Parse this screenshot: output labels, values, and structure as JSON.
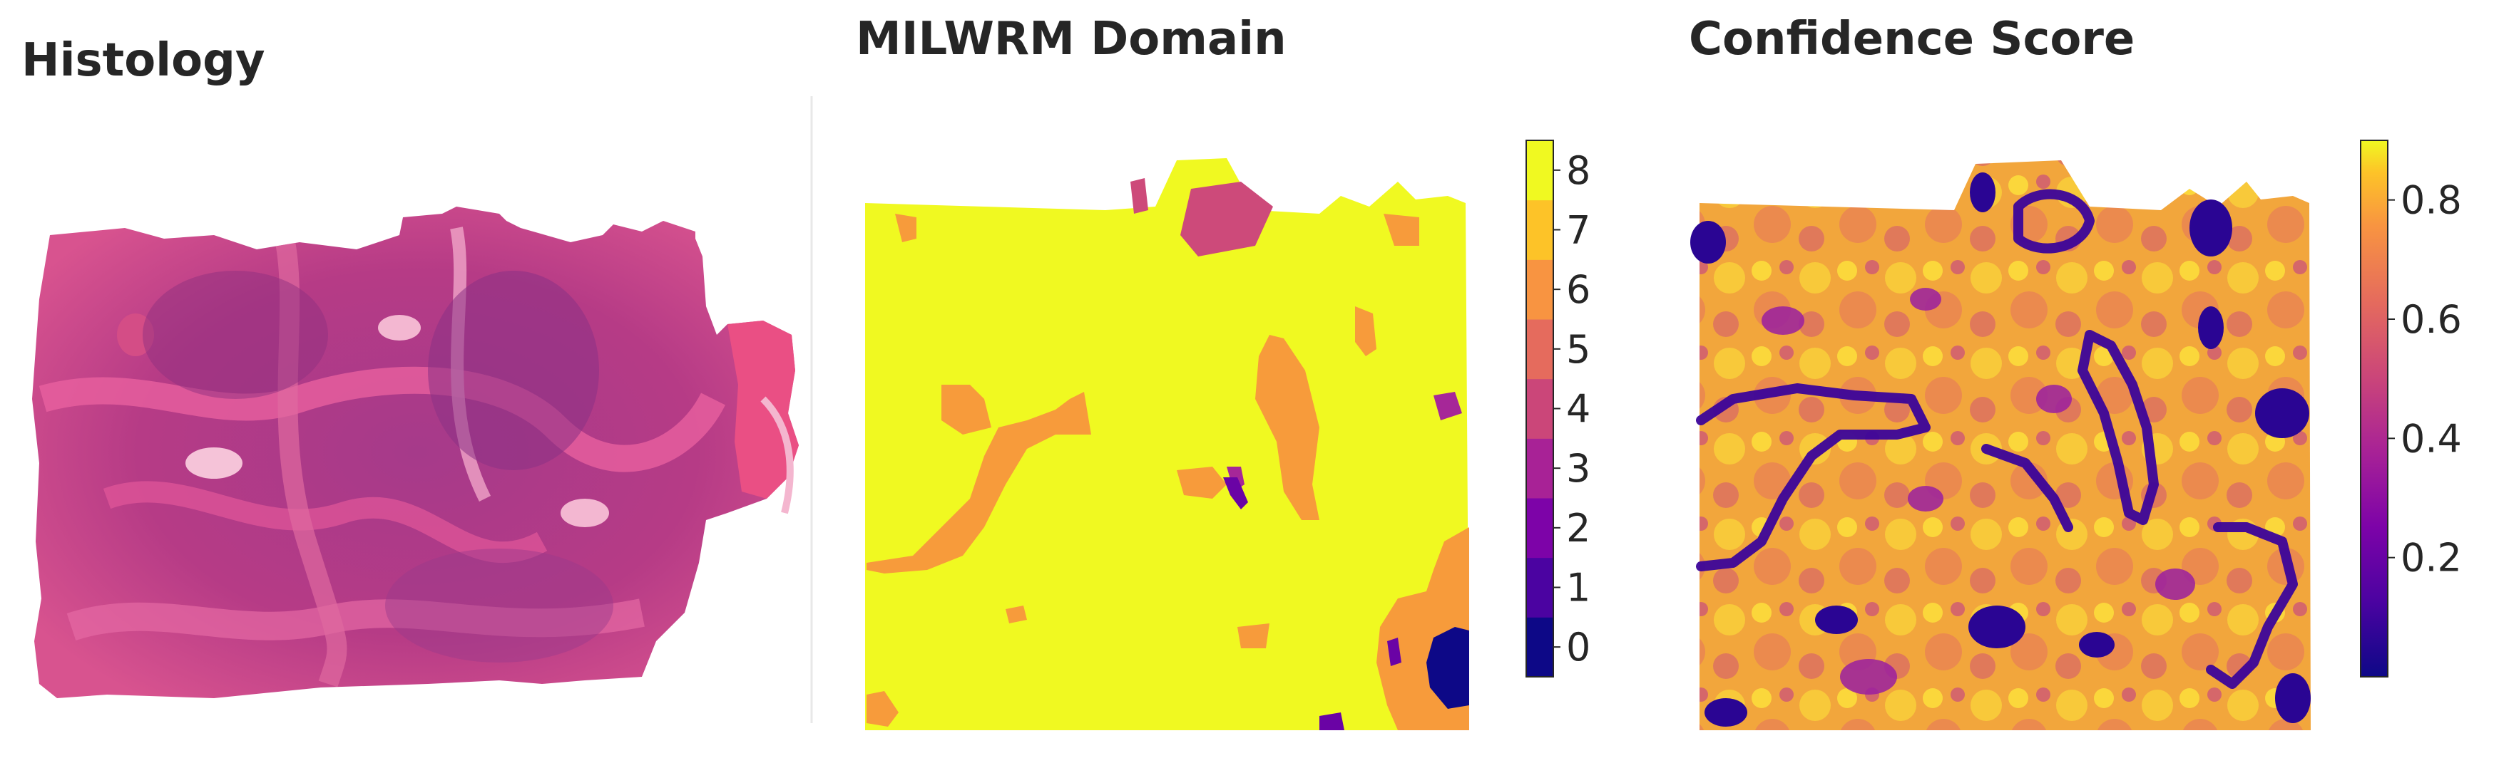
{
  "panels": {
    "histology": {
      "title": "Histology"
    },
    "domain": {
      "title": "MILWRM Domain"
    },
    "confidence": {
      "title": "Confidence Score"
    }
  },
  "chart_data": [
    {
      "type": "image",
      "title": "Histology",
      "description_colors": [
        "#c0397e",
        "#8e2f82",
        "#e36aa2",
        "#f4a9c8"
      ]
    },
    {
      "type": "heatmap",
      "title": "MILWRM Domain",
      "colorbar": {
        "kind": "discrete",
        "ticks": [
          0,
          1,
          2,
          3,
          4,
          5,
          6,
          7,
          8
        ],
        "colors": [
          "#0d0887",
          "#4b03a1",
          "#7d03a8",
          "#a82296",
          "#cb4679",
          "#e56b5d",
          "#f89441",
          "#fdc328",
          "#f0f921"
        ]
      },
      "regions": {
        "background_domain": 8,
        "major_other_domain": 6,
        "minor_domains": [
          2,
          3,
          4,
          0
        ]
      }
    },
    {
      "type": "heatmap",
      "title": "Confidence Score",
      "colorbar": {
        "kind": "continuous",
        "colormap": "plasma",
        "range": [
          0.0,
          0.9
        ],
        "ticks": [
          0.2,
          0.4,
          0.6,
          0.8
        ]
      }
    }
  ]
}
